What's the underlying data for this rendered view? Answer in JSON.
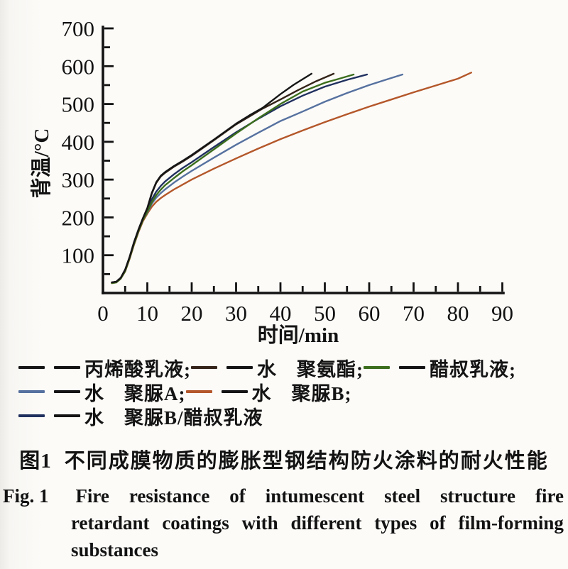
{
  "figure": {
    "captions": {
      "zh_prefix": "图1",
      "zh_title": "不同成膜物质的膨胀型钢结构防火涂料的耐火性能",
      "en_lines": [
        [
          "Fig. 1",
          "Fire",
          "resistance",
          "of",
          "intumescent",
          "steel",
          "structure",
          "fire"
        ],
        [
          "retardant",
          "coatings",
          "with",
          "different",
          "types",
          "of",
          "film-forming"
        ],
        [
          "substances"
        ]
      ]
    },
    "legend_rows": [
      [
        0,
        1,
        2
      ],
      [
        3,
        4
      ],
      [
        5
      ]
    ],
    "legend_dash2_color": "#141414"
  },
  "chart_data": {
    "type": "line",
    "title_zh": "图1 不同成膜物质的膨胀型钢结构防火涂料的耐火性能",
    "title_en": "Fig. 1 Fire resistance of intumescent steel structure fire retardant coatings with different types of film-forming substances",
    "xlabel": "时间/min",
    "ylabel": "背温/°C",
    "xlim": [
      0,
      90
    ],
    "ylim": [
      0,
      700
    ],
    "x_ticks": [
      0,
      10,
      20,
      30,
      40,
      50,
      60,
      70,
      80,
      90
    ],
    "y_ticks": [
      100,
      200,
      300,
      400,
      500,
      600,
      700
    ],
    "x_minor_step": 5,
    "y_minor_step": 50,
    "grid": false,
    "legend_position": "below",
    "draw_order": [
      4,
      3,
      5,
      2,
      1,
      0
    ],
    "series": [
      {
        "name": "丙烯酸乳液;",
        "color": "#161616",
        "points": [
          [
            2,
            28
          ],
          [
            3,
            30
          ],
          [
            4,
            40
          ],
          [
            5,
            62
          ],
          [
            6,
            95
          ],
          [
            7,
            135
          ],
          [
            8,
            168
          ],
          [
            9,
            198
          ],
          [
            10,
            225
          ],
          [
            11,
            265
          ],
          [
            12,
            293
          ],
          [
            13,
            310
          ],
          [
            14,
            320
          ],
          [
            16,
            336
          ],
          [
            18,
            350
          ],
          [
            20,
            365
          ],
          [
            25,
            406
          ],
          [
            30,
            448
          ],
          [
            33,
            470
          ],
          [
            36,
            490
          ],
          [
            40,
            526
          ],
          [
            43,
            551
          ],
          [
            47,
            580
          ]
        ]
      },
      {
        "name": "水　聚氨酯;",
        "color": "#342419",
        "points": [
          [
            2,
            28
          ],
          [
            3,
            30
          ],
          [
            4,
            40
          ],
          [
            5,
            62
          ],
          [
            6,
            95
          ],
          [
            7,
            134
          ],
          [
            8,
            167
          ],
          [
            9,
            197
          ],
          [
            10,
            224
          ],
          [
            11,
            263
          ],
          [
            12,
            291
          ],
          [
            13,
            308
          ],
          [
            14,
            318
          ],
          [
            16,
            334
          ],
          [
            18,
            348
          ],
          [
            20,
            363
          ],
          [
            25,
            404
          ],
          [
            30,
            446
          ],
          [
            33,
            467
          ],
          [
            36,
            488
          ],
          [
            40,
            512
          ],
          [
            44,
            537
          ],
          [
            48,
            560
          ],
          [
            52,
            580
          ]
        ]
      },
      {
        "name": "醋叔乳液;",
        "color": "#3c6e1d",
        "points": [
          [
            2,
            26
          ],
          [
            3,
            28
          ],
          [
            4,
            38
          ],
          [
            5,
            58
          ],
          [
            6,
            92
          ],
          [
            7,
            130
          ],
          [
            8,
            163
          ],
          [
            9,
            193
          ],
          [
            10,
            215
          ],
          [
            11,
            240
          ],
          [
            12,
            259
          ],
          [
            13,
            273
          ],
          [
            14,
            285
          ],
          [
            16,
            304
          ],
          [
            18,
            322
          ],
          [
            20,
            338
          ],
          [
            25,
            380
          ],
          [
            30,
            422
          ],
          [
            35,
            462
          ],
          [
            40,
            500
          ],
          [
            45,
            533
          ],
          [
            50,
            556
          ],
          [
            53,
            566
          ],
          [
            56.5,
            578
          ]
        ]
      },
      {
        "name": "水　聚脲A;",
        "color": "#56719f",
        "points": [
          [
            2,
            28
          ],
          [
            3,
            30
          ],
          [
            4,
            40
          ],
          [
            5,
            60
          ],
          [
            6,
            93
          ],
          [
            7,
            131
          ],
          [
            8,
            164
          ],
          [
            9,
            194
          ],
          [
            10,
            213
          ],
          [
            11,
            236
          ],
          [
            12,
            252
          ],
          [
            13,
            264
          ],
          [
            14,
            274
          ],
          [
            16,
            292
          ],
          [
            18,
            308
          ],
          [
            20,
            323
          ],
          [
            25,
            358
          ],
          [
            30,
            392
          ],
          [
            35,
            424
          ],
          [
            40,
            455
          ],
          [
            45,
            480
          ],
          [
            50,
            506
          ],
          [
            55,
            529
          ],
          [
            60,
            550
          ],
          [
            64,
            565
          ],
          [
            67.5,
            578
          ]
        ]
      },
      {
        "name": "水　聚脲B;",
        "color": "#b4572a",
        "points": [
          [
            2,
            26
          ],
          [
            3,
            28
          ],
          [
            4,
            38
          ],
          [
            5,
            57
          ],
          [
            6,
            90
          ],
          [
            7,
            128
          ],
          [
            8,
            161
          ],
          [
            9,
            190
          ],
          [
            10,
            210
          ],
          [
            11,
            228
          ],
          [
            12,
            241
          ],
          [
            13,
            251
          ],
          [
            14,
            259
          ],
          [
            16,
            274
          ],
          [
            18,
            287
          ],
          [
            20,
            300
          ],
          [
            25,
            329
          ],
          [
            30,
            356
          ],
          [
            35,
            382
          ],
          [
            40,
            407
          ],
          [
            45,
            430
          ],
          [
            50,
            452
          ],
          [
            55,
            473
          ],
          [
            60,
            493
          ],
          [
            65,
            512
          ],
          [
            70,
            531
          ],
          [
            75,
            549
          ],
          [
            80,
            567
          ],
          [
            83,
            583
          ]
        ]
      },
      {
        "name": "水　聚脲B/醋叔乳液",
        "color": "#20305e",
        "points": [
          [
            2,
            28
          ],
          [
            3,
            30
          ],
          [
            4,
            40
          ],
          [
            5,
            60
          ],
          [
            6,
            94
          ],
          [
            7,
            133
          ],
          [
            8,
            166
          ],
          [
            9,
            195
          ],
          [
            10,
            218
          ],
          [
            11,
            248
          ],
          [
            12,
            268
          ],
          [
            13,
            283
          ],
          [
            14,
            295
          ],
          [
            16,
            314
          ],
          [
            18,
            331
          ],
          [
            20,
            346
          ],
          [
            25,
            386
          ],
          [
            30,
            425
          ],
          [
            35,
            461
          ],
          [
            40,
            494
          ],
          [
            45,
            522
          ],
          [
            50,
            546
          ],
          [
            55,
            564
          ],
          [
            59.5,
            578
          ]
        ]
      }
    ]
  }
}
